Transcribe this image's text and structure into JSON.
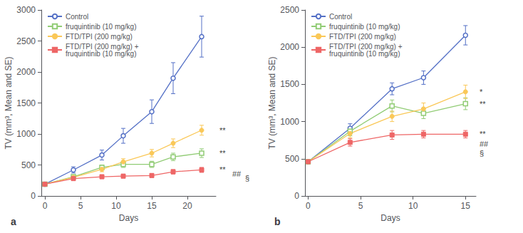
{
  "chart_data": [
    {
      "type": "line",
      "title": "a",
      "xlabel": "Days",
      "ylabel": "TV (mm³, Mean and SE)",
      "xlim": [
        -0.5,
        24
      ],
      "ylim": [
        0,
        3000
      ],
      "xticks": [
        0,
        5,
        10,
        15,
        20
      ],
      "yticks": [
        0,
        500,
        1000,
        1500,
        2000,
        2500,
        3000
      ],
      "grid": false,
      "legend": "upper left",
      "series": [
        {
          "name": "Control",
          "marker": "open-circle",
          "x": [
            0,
            4,
            8,
            11,
            15,
            18,
            22
          ],
          "values": [
            190,
            420,
            660,
            970,
            1360,
            1900,
            2570
          ],
          "errors": [
            20,
            50,
            80,
            120,
            190,
            250,
            330
          ]
        },
        {
          "name": "fruquintinib (10 mg/kg)",
          "marker": "open-square",
          "x": [
            0,
            4,
            8,
            11,
            15,
            18,
            22
          ],
          "values": [
            190,
            310,
            460,
            510,
            510,
            630,
            690
          ],
          "errors": [
            20,
            30,
            40,
            50,
            50,
            60,
            70
          ]
        },
        {
          "name": "FTD/TPI (200 mg/kg)",
          "marker": "circle",
          "x": [
            0,
            4,
            8,
            11,
            15,
            18,
            22
          ],
          "values": [
            190,
            300,
            430,
            550,
            690,
            850,
            1060
          ],
          "errors": [
            20,
            30,
            40,
            50,
            60,
            70,
            80
          ]
        },
        {
          "name": "FTD/TPI (200 mg/kg) +\nfruquintinib (10 mg/kg)",
          "marker": "square",
          "x": [
            0,
            4,
            8,
            11,
            15,
            18,
            22
          ],
          "values": [
            190,
            280,
            310,
            320,
            330,
            390,
            420
          ],
          "errors": [
            20,
            25,
            30,
            30,
            30,
            35,
            40
          ]
        }
      ],
      "annotations": [
        {
          "text": "**",
          "y": 1060
        },
        {
          "text": "**",
          "y": 690
        },
        {
          "text": "**",
          "y": 420
        },
        {
          "text": "##",
          "y": 355
        },
        {
          "text": "§",
          "y": 290
        }
      ]
    },
    {
      "type": "line",
      "title": "b",
      "xlabel": "Days",
      "ylabel": "TV (mm³, Mean and SE)",
      "xlim": [
        -0.3,
        16
      ],
      "ylim": [
        0,
        2500
      ],
      "xticks": [
        0,
        5,
        10,
        15
      ],
      "yticks": [
        0,
        500,
        1000,
        1500,
        2000,
        2500
      ],
      "grid": false,
      "legend": "upper left",
      "series": [
        {
          "name": "Control",
          "marker": "open-circle",
          "x": [
            0,
            4,
            8,
            11,
            15
          ],
          "values": [
            460,
            910,
            1440,
            1590,
            2160
          ],
          "errors": [
            20,
            60,
            80,
            90,
            130
          ]
        },
        {
          "name": "fruquintinib (10 mg/kg)",
          "marker": "open-square",
          "x": [
            0,
            4,
            8,
            11,
            15
          ],
          "values": [
            460,
            870,
            1210,
            1110,
            1240
          ],
          "errors": [
            20,
            60,
            80,
            70,
            80
          ]
        },
        {
          "name": "FTD/TPI (200 mg/kg)",
          "marker": "circle",
          "x": [
            0,
            4,
            8,
            11,
            15
          ],
          "values": [
            460,
            840,
            1070,
            1170,
            1400
          ],
          "errors": [
            20,
            55,
            70,
            80,
            90
          ]
        },
        {
          "name": "FTD/TPI (200 mg/kg) +\nfruquintinib (10 mg/kg)",
          "marker": "square",
          "x": [
            0,
            4,
            8,
            11,
            15
          ],
          "values": [
            460,
            720,
            820,
            830,
            830
          ],
          "errors": [
            20,
            50,
            60,
            50,
            50
          ]
        }
      ],
      "annotations": [
        {
          "text": "*",
          "y": 1400
        },
        {
          "text": "**",
          "y": 1240
        },
        {
          "text": "**",
          "y": 830
        },
        {
          "text": "##",
          "y": 700
        },
        {
          "text": "§",
          "y": 570
        }
      ]
    }
  ]
}
